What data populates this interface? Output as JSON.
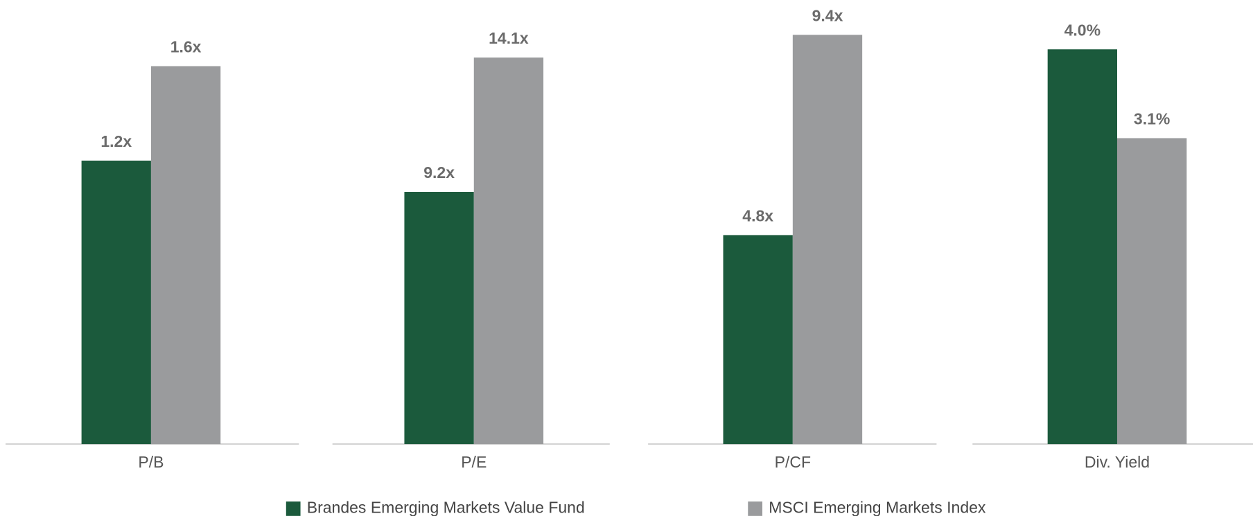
{
  "legend": [
    {
      "name": "Brandes Emerging Markets Value Fund",
      "color": "#1b5a3c"
    },
    {
      "name": "MSCI Emerging Markets Index",
      "color": "#9a9b9d"
    }
  ],
  "chart_data": [
    {
      "type": "bar",
      "categories": [
        "P/B"
      ],
      "ylim": [
        0,
        1.88
      ],
      "series": [
        {
          "values": [
            1.2
          ],
          "value_labels": [
            "1.2x"
          ]
        },
        {
          "values": [
            1.6
          ],
          "value_labels": [
            "1.6x"
          ]
        }
      ]
    },
    {
      "type": "bar",
      "categories": [
        "P/E"
      ],
      "ylim": [
        0,
        16.2
      ],
      "series": [
        {
          "values": [
            9.2
          ],
          "value_labels": [
            "9.2x"
          ]
        },
        {
          "values": [
            14.1
          ],
          "value_labels": [
            "14.1x"
          ]
        }
      ]
    },
    {
      "type": "bar",
      "categories": [
        "P/CF"
      ],
      "ylim": [
        0,
        10.2
      ],
      "series": [
        {
          "values": [
            4.8
          ],
          "value_labels": [
            "4.8x"
          ]
        },
        {
          "values": [
            9.4
          ],
          "value_labels": [
            "9.4x"
          ]
        }
      ]
    },
    {
      "type": "bar",
      "categories": [
        "Div. Yield"
      ],
      "ylim": [
        0,
        4.5
      ],
      "series": [
        {
          "values": [
            4.0
          ],
          "value_labels": [
            "4.0%"
          ]
        },
        {
          "values": [
            3.1
          ],
          "value_labels": [
            "3.1%"
          ]
        }
      ]
    }
  ]
}
